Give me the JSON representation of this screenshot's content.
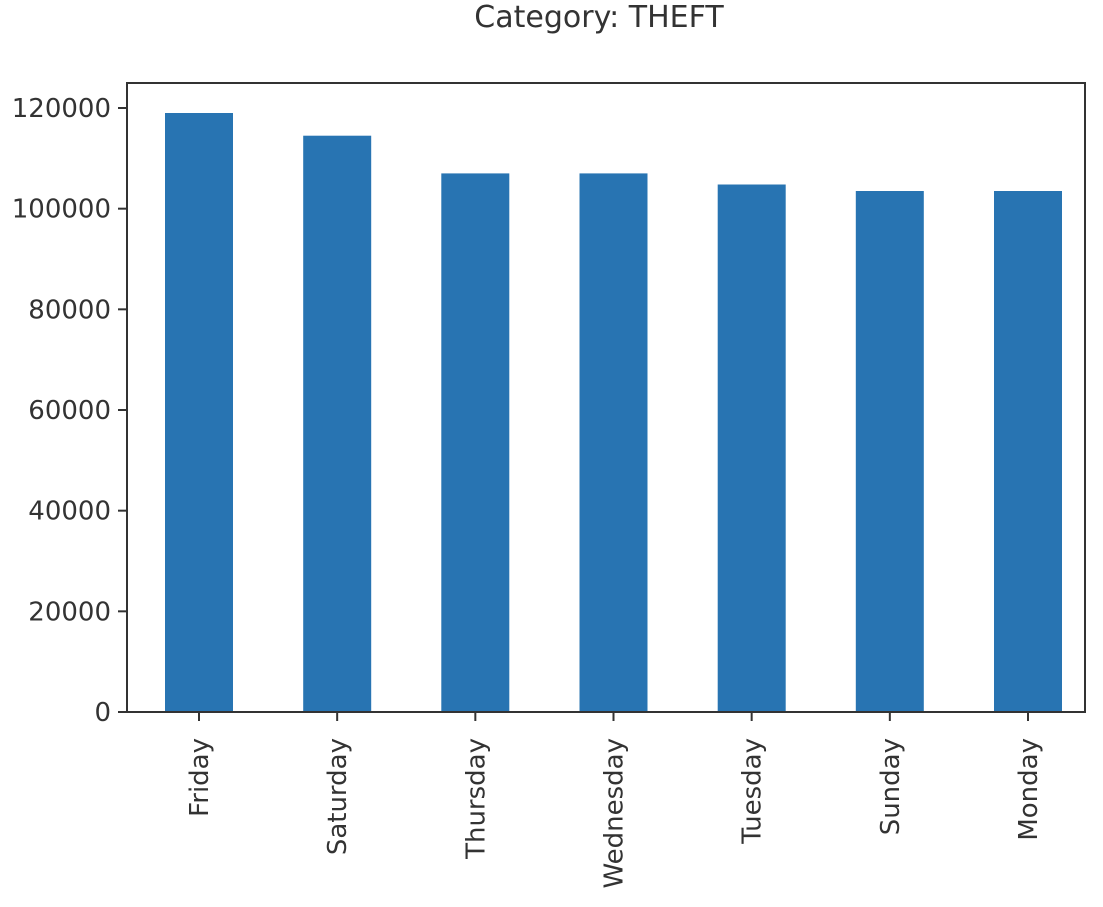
{
  "chart_data": {
    "type": "bar",
    "title": "Category: THEFT",
    "xlabel": "",
    "ylabel": "",
    "categories": [
      "Friday",
      "Saturday",
      "Thursday",
      "Wednesday",
      "Tuesday",
      "Sunday",
      "Monday"
    ],
    "values": [
      119000,
      114500,
      107000,
      107000,
      104800,
      103500,
      103500
    ],
    "ylim": [
      0,
      125000
    ],
    "yticks": [
      0,
      20000,
      40000,
      60000,
      80000,
      100000,
      120000
    ],
    "ytick_labels": [
      "0",
      "20000",
      "40000",
      "60000",
      "80000",
      "100000",
      "120000"
    ],
    "bar_color": "#2874b2",
    "grid": false,
    "legend": false
  }
}
